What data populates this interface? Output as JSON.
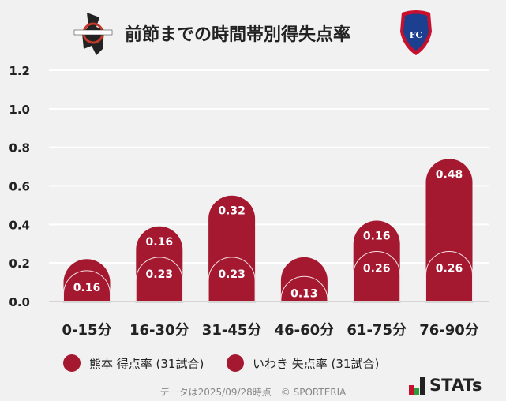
{
  "title": "前節までの時間帯別得失点率",
  "logos": {
    "left": "ROASSO KUMAMOTO",
    "right": "IWAKI FC"
  },
  "chart_data": {
    "type": "bar",
    "stacked": true,
    "categories": [
      "0-15分",
      "16-30分",
      "31-45分",
      "46-60分",
      "61-75分",
      "76-90分"
    ],
    "series": [
      {
        "name": "熊本 得点率 (31試合)",
        "values": [
          0.16,
          0.23,
          0.23,
          0.13,
          0.26,
          0.26
        ],
        "labels": [
          "0.16",
          "0.23",
          "0.23",
          "0.13",
          "0.26",
          "0.26"
        ]
      },
      {
        "name": "いわき 失点率 (31試合)",
        "values": [
          0.06,
          0.16,
          0.32,
          0.1,
          0.16,
          0.48
        ],
        "labels": [
          "",
          "0.16",
          "0.32",
          "",
          "0.16",
          "0.48"
        ]
      }
    ],
    "yticks": [
      "0.0",
      "0.2",
      "0.4",
      "0.6",
      "0.8",
      "1.0",
      "1.2"
    ],
    "ylim": [
      0,
      1.2
    ],
    "grid": true,
    "legend": "bottom",
    "color": "#a51930"
  },
  "footer": "データは2025/09/28時点　© SPORTERIA",
  "brand": "STATs"
}
